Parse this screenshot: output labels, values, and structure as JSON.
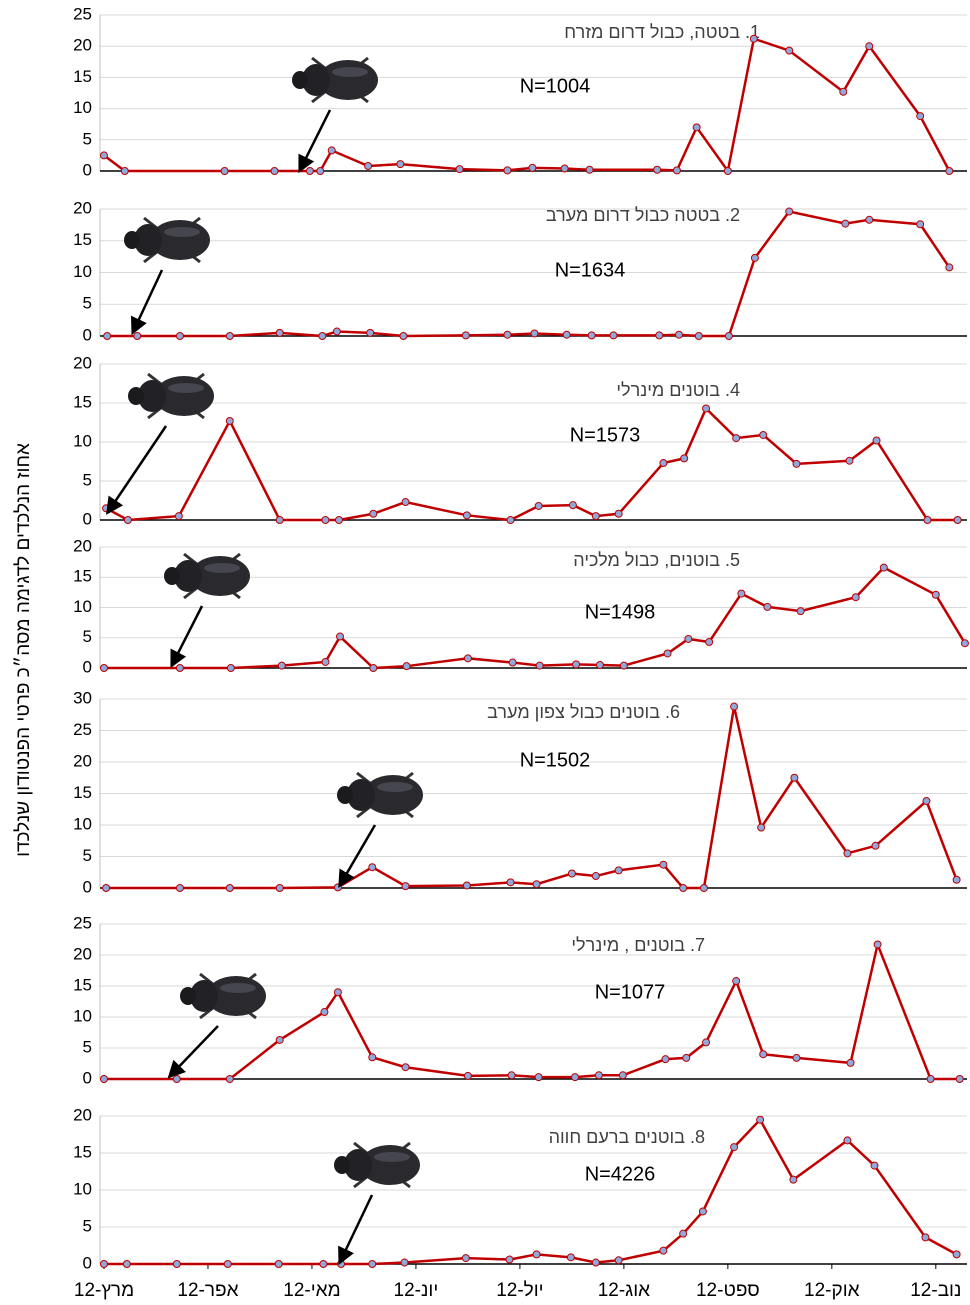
{
  "ylabel": "אחוז הנלכדים לדגימה מסה״כ פרטי הפנטודון שנלכדו",
  "chart_data": [
    {
      "type": "line",
      "title": "1. בטטה,  כבול דרום מזרח",
      "note": "N=1004",
      "xlim": [
        0,
        8.3
      ],
      "ylim": [
        0,
        25
      ],
      "yticks": [
        0,
        5,
        10,
        15,
        20,
        25
      ],
      "grid": true,
      "series": [
        {
          "color": "#c00000",
          "x": [
            0,
            0.2,
            1.16,
            1.64,
            1.98,
            2.08,
            2.19,
            2.54,
            2.85,
            3.42,
            3.88,
            4.12,
            4.43,
            4.67,
            5.32,
            5.51,
            5.7,
            6.0,
            6.25,
            6.59,
            7.11,
            7.36,
            7.85,
            8.13
          ],
          "values": [
            2.5,
            0,
            0,
            0,
            0,
            0,
            3.3,
            0.8,
            1.1,
            0.3,
            0.1,
            0.5,
            0.4,
            0.2,
            0.2,
            0.1,
            7,
            0,
            21.2,
            19.3,
            12.7,
            20,
            8.8,
            0
          ]
        }
      ]
    },
    {
      "type": "line",
      "title": "2. בטטה כבול דרום מערב",
      "note": "N=1634",
      "xlim": [
        0,
        8.3
      ],
      "ylim": [
        0,
        20
      ],
      "yticks": [
        0,
        5,
        10,
        15,
        20
      ],
      "grid": true,
      "series": [
        {
          "color": "#c00000",
          "x": [
            0.03,
            0.32,
            0.73,
            1.21,
            1.69,
            2.1,
            2.24,
            2.56,
            2.88,
            3.48,
            3.88,
            4.14,
            4.45,
            4.69,
            4.9,
            5.34,
            5.53,
            5.72,
            6.01,
            6.26,
            6.59,
            7.13,
            7.36,
            7.85,
            8.13
          ],
          "values": [
            0,
            0,
            0,
            0,
            0.5,
            0,
            0.7,
            0.5,
            0,
            0.1,
            0.2,
            0.4,
            0.2,
            0.1,
            0.1,
            0.1,
            0.2,
            0,
            0,
            12.3,
            19.6,
            17.7,
            18.3,
            17.6,
            10.8
          ]
        }
      ]
    },
    {
      "type": "line",
      "title": "4. בוטנים מינרלי",
      "note": "N=1573",
      "xlim": [
        0,
        8.3
      ],
      "ylim": [
        0,
        20
      ],
      "yticks": [
        0,
        5,
        10,
        15,
        20
      ],
      "grid": true,
      "series": [
        {
          "color": "#c00000",
          "x": [
            0.02,
            0.23,
            0.72,
            1.21,
            1.69,
            2.13,
            2.26,
            2.59,
            2.9,
            3.49,
            3.91,
            4.18,
            4.51,
            4.73,
            4.95,
            5.38,
            5.58,
            5.79,
            6.08,
            6.34,
            6.66,
            7.17,
            7.43,
            7.92,
            8.21
          ],
          "values": [
            1.5,
            0,
            0.5,
            12.7,
            0,
            0,
            0,
            0.8,
            2.3,
            0.6,
            0,
            1.8,
            1.9,
            0.5,
            0.8,
            7.3,
            7.9,
            14.3,
            10.5,
            10.9,
            7.2,
            7.6,
            10.2,
            0,
            0
          ]
        }
      ]
    },
    {
      "type": "line",
      "title": "5. בוטנים,  כבול מלכיה",
      "note": "N=1498",
      "xlim": [
        0,
        8.3
      ],
      "ylim": [
        0,
        20
      ],
      "yticks": [
        0,
        5,
        10,
        15,
        20
      ],
      "grid": true,
      "series": [
        {
          "color": "#c00000",
          "x": [
            0,
            0.73,
            1.22,
            1.71,
            2.13,
            2.27,
            2.59,
            2.91,
            3.5,
            3.93,
            4.19,
            4.54,
            4.77,
            5.0,
            5.42,
            5.62,
            5.82,
            6.13,
            6.38,
            6.7,
            7.23,
            7.5,
            8.0,
            8.28
          ],
          "values": [
            0,
            0,
            0,
            0.4,
            1,
            5.2,
            0,
            0.3,
            1.6,
            0.9,
            0.4,
            0.6,
            0.5,
            0.4,
            2.4,
            4.8,
            4.3,
            12.3,
            10.1,
            9.4,
            11.7,
            16.6,
            12.1,
            4.1
          ]
        }
      ]
    },
    {
      "type": "line",
      "title": "6. בוטנים כבול צפון מערב",
      "note": "N=1502",
      "xlim": [
        0,
        8.3
      ],
      "ylim": [
        0,
        30
      ],
      "yticks": [
        0,
        5,
        10,
        15,
        20,
        25,
        30
      ],
      "grid": true,
      "series": [
        {
          "color": "#c00000",
          "x": [
            0.02,
            0.73,
            1.21,
            1.69,
            2.25,
            2.58,
            2.9,
            3.49,
            3.91,
            4.16,
            4.5,
            4.73,
            4.95,
            5.38,
            5.57,
            5.77,
            6.06,
            6.32,
            6.64,
            7.15,
            7.42,
            7.91,
            8.2
          ],
          "values": [
            0,
            0,
            0,
            0,
            0.1,
            3.3,
            0.3,
            0.4,
            0.9,
            0.6,
            2.3,
            1.9,
            2.8,
            3.7,
            0,
            0,
            28.8,
            9.6,
            17.5,
            5.5,
            6.7,
            13.8,
            1.3
          ]
        }
      ]
    },
    {
      "type": "line",
      "title": "7. בוטנים , מינרלי",
      "note": "N=1077",
      "xlim": [
        0,
        8.3
      ],
      "ylim": [
        0,
        25
      ],
      "yticks": [
        0,
        5,
        10,
        15,
        20,
        25
      ],
      "grid": true,
      "series": [
        {
          "color": "#c00000",
          "x": [
            0,
            0.7,
            1.21,
            1.69,
            2.12,
            2.25,
            2.58,
            2.9,
            3.5,
            3.92,
            4.18,
            4.53,
            4.76,
            4.99,
            5.4,
            5.6,
            5.79,
            6.08,
            6.34,
            6.66,
            7.18,
            7.44,
            7.95,
            8.23
          ],
          "values": [
            0,
            0,
            0,
            6.3,
            10.8,
            14,
            3.5,
            1.9,
            0.5,
            0.6,
            0.3,
            0.3,
            0.6,
            0.6,
            3.2,
            3.4,
            5.9,
            15.8,
            4,
            3.4,
            2.6,
            21.7,
            0,
            0
          ]
        }
      ]
    },
    {
      "type": "line",
      "title": "8. בוטנים ברעם חווה",
      "note": "N=4226",
      "xlim": [
        0,
        8.3
      ],
      "ylim": [
        0,
        20
      ],
      "yticks": [
        0,
        5,
        10,
        15,
        20
      ],
      "grid": true,
      "xticks": [
        {
          "value": 0,
          "label": "12-מרץ"
        },
        {
          "value": 1,
          "label": "12-אפר"
        },
        {
          "value": 2,
          "label": "12-מאי"
        },
        {
          "value": 3,
          "label": "12-יונ"
        },
        {
          "value": 4,
          "label": "12-יול"
        },
        {
          "value": 5,
          "label": "12-אוג"
        },
        {
          "value": 6,
          "label": "12-ספט"
        },
        {
          "value": 7,
          "label": "12-אוק"
        },
        {
          "value": 8,
          "label": "12-נוב"
        }
      ],
      "series": [
        {
          "color": "#c00000",
          "x": [
            0,
            0.22,
            0.7,
            1.19,
            1.68,
            2.11,
            2.28,
            2.58,
            2.89,
            3.48,
            3.9,
            4.16,
            4.49,
            4.73,
            4.95,
            5.38,
            5.57,
            5.76,
            6.06,
            6.31,
            6.63,
            7.15,
            7.41,
            7.9,
            8.2
          ],
          "values": [
            0,
            0,
            0,
            0,
            0,
            0,
            0,
            0,
            0.2,
            0.8,
            0.6,
            1.3,
            0.9,
            0.2,
            0.5,
            1.8,
            4.1,
            7.1,
            15.8,
            19.5,
            11.4,
            16.7,
            13.3,
            3.6,
            1.3
          ]
        }
      ]
    }
  ]
}
